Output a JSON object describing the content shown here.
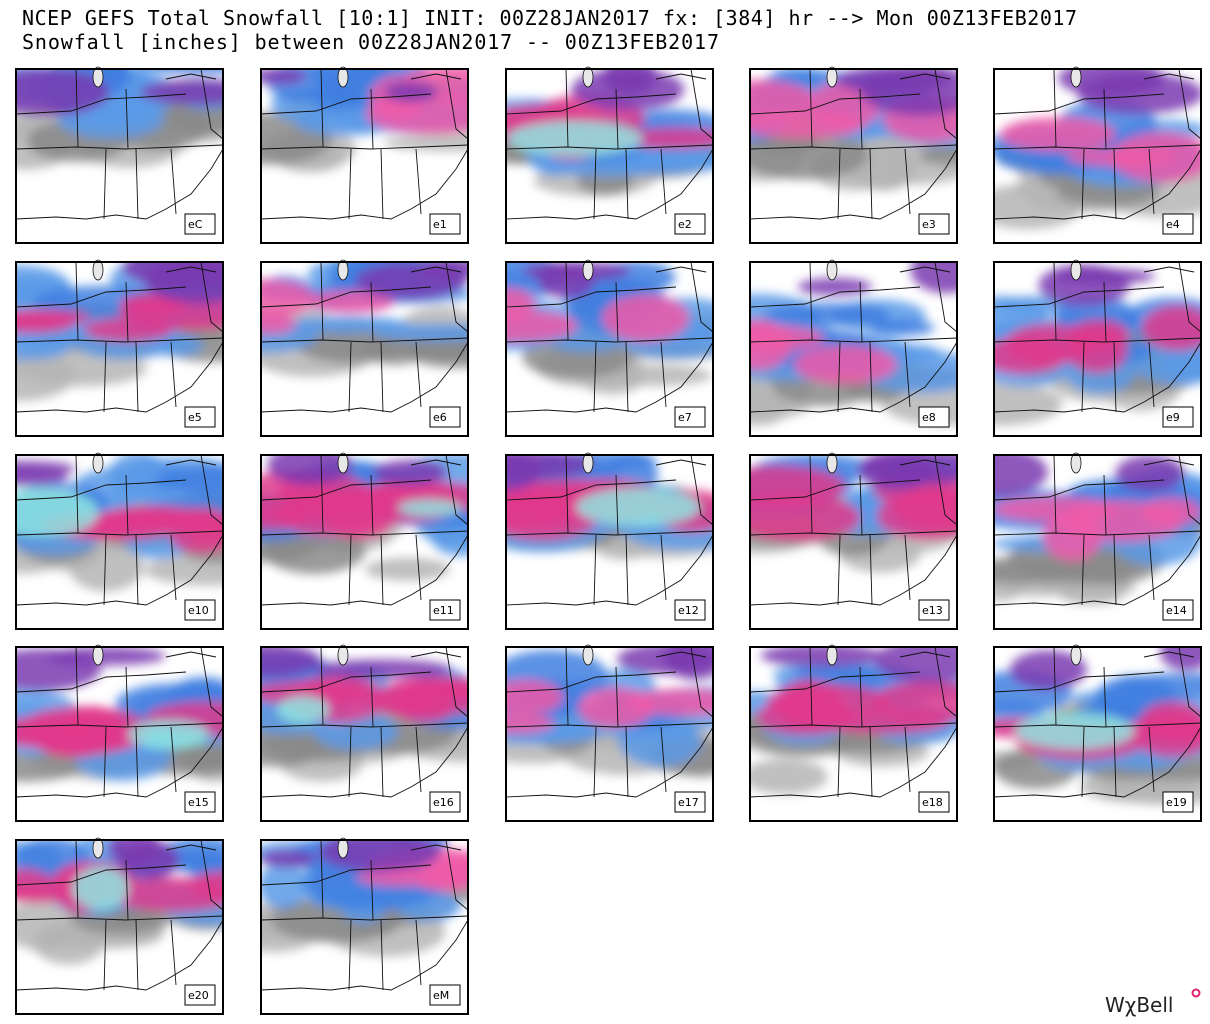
{
  "header": {
    "title": "NCEP GEFS Total Snowfall [10:1] INIT: 00Z28JAN2017 fx: [384] hr --> Mon 00Z13FEB2017",
    "subtitle": "Snowfall [inches] between 00Z28JAN2017 -- 00Z13FEB2017"
  },
  "panels": [
    {
      "label": "eC"
    },
    {
      "label": "e1"
    },
    {
      "label": "e2"
    },
    {
      "label": "e3"
    },
    {
      "label": "e4"
    },
    {
      "label": "e5"
    },
    {
      "label": "e6"
    },
    {
      "label": "e7"
    },
    {
      "label": "e8"
    },
    {
      "label": "e9"
    },
    {
      "label": "e10"
    },
    {
      "label": "e11"
    },
    {
      "label": "e12"
    },
    {
      "label": "e13"
    },
    {
      "label": "e14"
    },
    {
      "label": "e15"
    },
    {
      "label": "e16"
    },
    {
      "label": "e17"
    },
    {
      "label": "e18"
    },
    {
      "label": "e19"
    },
    {
      "label": "e20"
    },
    {
      "label": "eM"
    }
  ],
  "logo": "WχBell"
}
